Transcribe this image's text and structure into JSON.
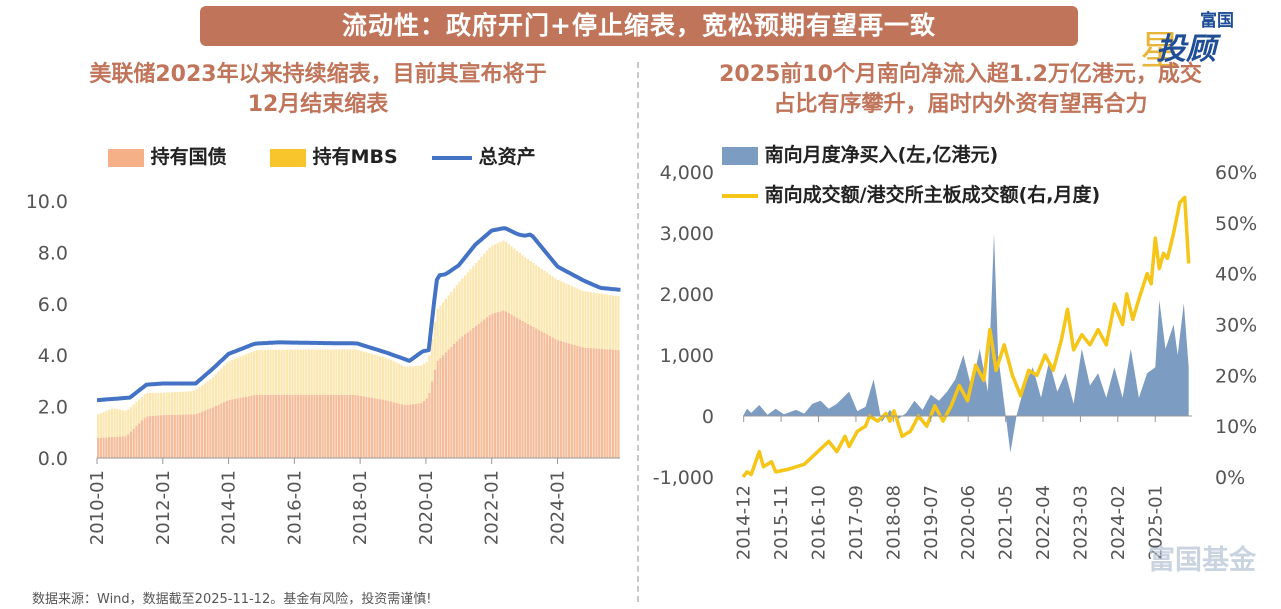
{
  "header": {
    "title": "流动性：政府开门+停止缩表，宽松预期有望再一致"
  },
  "brand": {
    "line1": "富国",
    "line2": "投顾",
    "star": "星"
  },
  "watermark": "富国基金",
  "footer": {
    "text": "数据来源：Wind，数据截至2025-11-12。基金有风险，投资需谨慎!"
  },
  "chart_data": [
    {
      "type": "area",
      "title": "美联储2023年以来持续缩表，目前其宣布将于12月结束缩表",
      "title_line1": "美联储2023年以来持续缩表，目前其宣布将于",
      "title_line2": "12月结束缩表",
      "ylim": [
        0,
        10
      ],
      "yticks": [
        "0.0",
        "2.0",
        "4.0",
        "6.0",
        "8.0",
        "10.0"
      ],
      "xticks": [
        "2010-01",
        "2012-01",
        "2014-01",
        "2016-01",
        "2018-01",
        "2020-01",
        "2022-01",
        "2024-01"
      ],
      "xrange": [
        2010.0,
        2025.9
      ],
      "legend_placement": "top",
      "colors": {
        "treasury": "#f5b087",
        "mbs": "#fbe6ab",
        "total": "#4472c4"
      },
      "series": [
        {
          "name": "持有国债",
          "points": [
            [
              2010.0,
              0.78
            ],
            [
              2010.9,
              0.85
            ],
            [
              2011.5,
              1.62
            ],
            [
              2012.0,
              1.67
            ],
            [
              2013.0,
              1.7
            ],
            [
              2013.5,
              1.95
            ],
            [
              2014.0,
              2.25
            ],
            [
              2014.8,
              2.45
            ],
            [
              2015.5,
              2.46
            ],
            [
              2017.0,
              2.46
            ],
            [
              2017.9,
              2.45
            ],
            [
              2018.8,
              2.25
            ],
            [
              2019.4,
              2.05
            ],
            [
              2019.9,
              2.15
            ],
            [
              2020.1,
              2.4
            ],
            [
              2020.35,
              3.75
            ],
            [
              2021.0,
              4.6
            ],
            [
              2022.0,
              5.6
            ],
            [
              2022.4,
              5.75
            ],
            [
              2023.0,
              5.3
            ],
            [
              2024.0,
              4.6
            ],
            [
              2024.8,
              4.3
            ],
            [
              2025.85,
              4.2
            ]
          ]
        },
        {
          "name": "持有MBS",
          "points": [
            [
              2010.0,
              0.9
            ],
            [
              2010.5,
              1.12
            ],
            [
              2011.0,
              0.95
            ],
            [
              2012.0,
              0.87
            ],
            [
              2012.9,
              0.9
            ],
            [
              2013.5,
              1.15
            ],
            [
              2014.0,
              1.5
            ],
            [
              2014.9,
              1.75
            ],
            [
              2017.0,
              1.76
            ],
            [
              2017.9,
              1.77
            ],
            [
              2018.8,
              1.65
            ],
            [
              2019.4,
              1.5
            ],
            [
              2019.9,
              1.45
            ],
            [
              2020.1,
              1.4
            ],
            [
              2020.35,
              2.0
            ],
            [
              2021.0,
              2.2
            ],
            [
              2022.0,
              2.65
            ],
            [
              2022.4,
              2.72
            ],
            [
              2023.0,
              2.55
            ],
            [
              2024.0,
              2.35
            ],
            [
              2024.8,
              2.2
            ],
            [
              2025.85,
              2.1
            ]
          ]
        },
        {
          "name": "总资产",
          "points": [
            [
              2010.0,
              2.25
            ],
            [
              2010.5,
              2.3
            ],
            [
              2011.0,
              2.35
            ],
            [
              2011.5,
              2.85
            ],
            [
              2012.0,
              2.9
            ],
            [
              2013.0,
              2.9
            ],
            [
              2013.5,
              3.45
            ],
            [
              2014.0,
              4.05
            ],
            [
              2014.8,
              4.45
            ],
            [
              2015.5,
              4.5
            ],
            [
              2017.0,
              4.47
            ],
            [
              2017.9,
              4.46
            ],
            [
              2018.8,
              4.1
            ],
            [
              2019.5,
              3.78
            ],
            [
              2019.9,
              4.15
            ],
            [
              2020.1,
              4.2
            ],
            [
              2020.2,
              5.6
            ],
            [
              2020.35,
              7.1
            ],
            [
              2020.6,
              7.15
            ],
            [
              2021.0,
              7.5
            ],
            [
              2021.5,
              8.3
            ],
            [
              2022.0,
              8.85
            ],
            [
              2022.4,
              8.95
            ],
            [
              2022.8,
              8.7
            ],
            [
              2023.0,
              8.65
            ],
            [
              2023.2,
              8.7
            ],
            [
              2024.0,
              7.45
            ],
            [
              2024.8,
              6.9
            ],
            [
              2025.3,
              6.62
            ],
            [
              2025.85,
              6.55
            ]
          ]
        }
      ]
    },
    {
      "type": "area",
      "title": "2025前10个月南向净流入超1.2万亿港元，成交占比有序攀升，届时内外资有望再合力",
      "title_line1": "2025前10个月南向净流入超1.2万亿港元，成交",
      "title_line2": "占比有序攀升，届时内外资有望再合力",
      "y_left": {
        "range": [
          -1000,
          4000
        ],
        "ticks": [
          "-1,000",
          "0",
          "1,000",
          "2,000",
          "3,000",
          "4,000"
        ]
      },
      "y_right": {
        "range": [
          0,
          60
        ],
        "ticks": [
          "0%",
          "10%",
          "20%",
          "30%",
          "40%",
          "50%",
          "60%"
        ]
      },
      "xticks": [
        "2014-12",
        "2015-11",
        "2016-10",
        "2017-09",
        "2018-08",
        "2019-07",
        "2020-06",
        "2021-05",
        "2022-04",
        "2023-03",
        "2024-02",
        "2025-01"
      ],
      "xrange": [
        2014.9,
        2025.9
      ],
      "legend_placement": "top-left",
      "colors": {
        "netbuy": "#7d9cc2",
        "share": "#f5c518"
      },
      "series": [
        {
          "name": "南向月度净买入(左,亿港元)",
          "points": [
            [
              2014.9,
              0
            ],
            [
              2015.0,
              120
            ],
            [
              2015.1,
              50
            ],
            [
              2015.3,
              180
            ],
            [
              2015.5,
              20
            ],
            [
              2015.7,
              120
            ],
            [
              2015.9,
              30
            ],
            [
              2016.2,
              100
            ],
            [
              2016.4,
              40
            ],
            [
              2016.6,
              200
            ],
            [
              2016.8,
              250
            ],
            [
              2017.0,
              120
            ],
            [
              2017.2,
              200
            ],
            [
              2017.5,
              400
            ],
            [
              2017.7,
              80
            ],
            [
              2017.9,
              150
            ],
            [
              2018.1,
              600
            ],
            [
              2018.3,
              -100
            ],
            [
              2018.5,
              100
            ],
            [
              2018.7,
              -50
            ],
            [
              2018.9,
              50
            ],
            [
              2019.1,
              250
            ],
            [
              2019.3,
              100
            ],
            [
              2019.5,
              350
            ],
            [
              2019.7,
              250
            ],
            [
              2019.9,
              400
            ],
            [
              2020.1,
              600
            ],
            [
              2020.3,
              1000
            ],
            [
              2020.5,
              450
            ],
            [
              2020.7,
              1100
            ],
            [
              2020.9,
              400
            ],
            [
              2021.0,
              2100
            ],
            [
              2021.05,
              3000
            ],
            [
              2021.15,
              1000
            ],
            [
              2021.3,
              200
            ],
            [
              2021.45,
              -600
            ],
            [
              2021.6,
              0
            ],
            [
              2021.8,
              500
            ],
            [
              2022.0,
              800
            ],
            [
              2022.2,
              300
            ],
            [
              2022.4,
              900
            ],
            [
              2022.6,
              400
            ],
            [
              2022.8,
              700
            ],
            [
              2023.0,
              200
            ],
            [
              2023.2,
              1100
            ],
            [
              2023.4,
              500
            ],
            [
              2023.6,
              700
            ],
            [
              2023.8,
              300
            ],
            [
              2024.0,
              800
            ],
            [
              2024.2,
              300
            ],
            [
              2024.4,
              1100
            ],
            [
              2024.6,
              300
            ],
            [
              2024.8,
              700
            ],
            [
              2025.0,
              800
            ],
            [
              2025.1,
              1900
            ],
            [
              2025.25,
              1100
            ],
            [
              2025.45,
              1500
            ],
            [
              2025.55,
              1000
            ],
            [
              2025.7,
              1850
            ],
            [
              2025.82,
              800
            ]
          ]
        },
        {
          "name": "南向成交额/港交所主板成交额(右,月度)",
          "points": [
            [
              2014.9,
              0
            ],
            [
              2015.0,
              1
            ],
            [
              2015.1,
              0.5
            ],
            [
              2015.3,
              5
            ],
            [
              2015.4,
              2
            ],
            [
              2015.6,
              3
            ],
            [
              2015.7,
              1
            ],
            [
              2016.0,
              1.5
            ],
            [
              2016.2,
              2
            ],
            [
              2016.4,
              2.5
            ],
            [
              2016.6,
              4
            ],
            [
              2016.8,
              5.5
            ],
            [
              2017.0,
              7
            ],
            [
              2017.2,
              5
            ],
            [
              2017.4,
              8
            ],
            [
              2017.5,
              6
            ],
            [
              2017.7,
              9
            ],
            [
              2017.9,
              10
            ],
            [
              2018.0,
              12
            ],
            [
              2018.2,
              11
            ],
            [
              2018.4,
              12.5
            ],
            [
              2018.5,
              11
            ],
            [
              2018.6,
              13
            ],
            [
              2018.8,
              8
            ],
            [
              2019.0,
              9
            ],
            [
              2019.2,
              12
            ],
            [
              2019.4,
              10
            ],
            [
              2019.6,
              14
            ],
            [
              2019.8,
              11
            ],
            [
              2020.0,
              14
            ],
            [
              2020.2,
              18
            ],
            [
              2020.4,
              15
            ],
            [
              2020.6,
              22
            ],
            [
              2020.8,
              19
            ],
            [
              2020.95,
              29
            ],
            [
              2021.1,
              21
            ],
            [
              2021.3,
              26
            ],
            [
              2021.5,
              20
            ],
            [
              2021.7,
              16
            ],
            [
              2021.9,
              21
            ],
            [
              2022.1,
              20
            ],
            [
              2022.3,
              24
            ],
            [
              2022.5,
              21
            ],
            [
              2022.7,
              27
            ],
            [
              2022.85,
              33
            ],
            [
              2023.0,
              25
            ],
            [
              2023.2,
              28
            ],
            [
              2023.4,
              26
            ],
            [
              2023.6,
              29
            ],
            [
              2023.8,
              26
            ],
            [
              2024.0,
              34
            ],
            [
              2024.2,
              30
            ],
            [
              2024.3,
              36
            ],
            [
              2024.45,
              31
            ],
            [
              2024.6,
              35
            ],
            [
              2024.8,
              40
            ],
            [
              2024.9,
              38
            ],
            [
              2025.0,
              47
            ],
            [
              2025.1,
              41
            ],
            [
              2025.2,
              44
            ],
            [
              2025.3,
              43
            ],
            [
              2025.45,
              48
            ],
            [
              2025.6,
              54
            ],
            [
              2025.72,
              55
            ],
            [
              2025.82,
              42
            ]
          ]
        }
      ]
    }
  ]
}
